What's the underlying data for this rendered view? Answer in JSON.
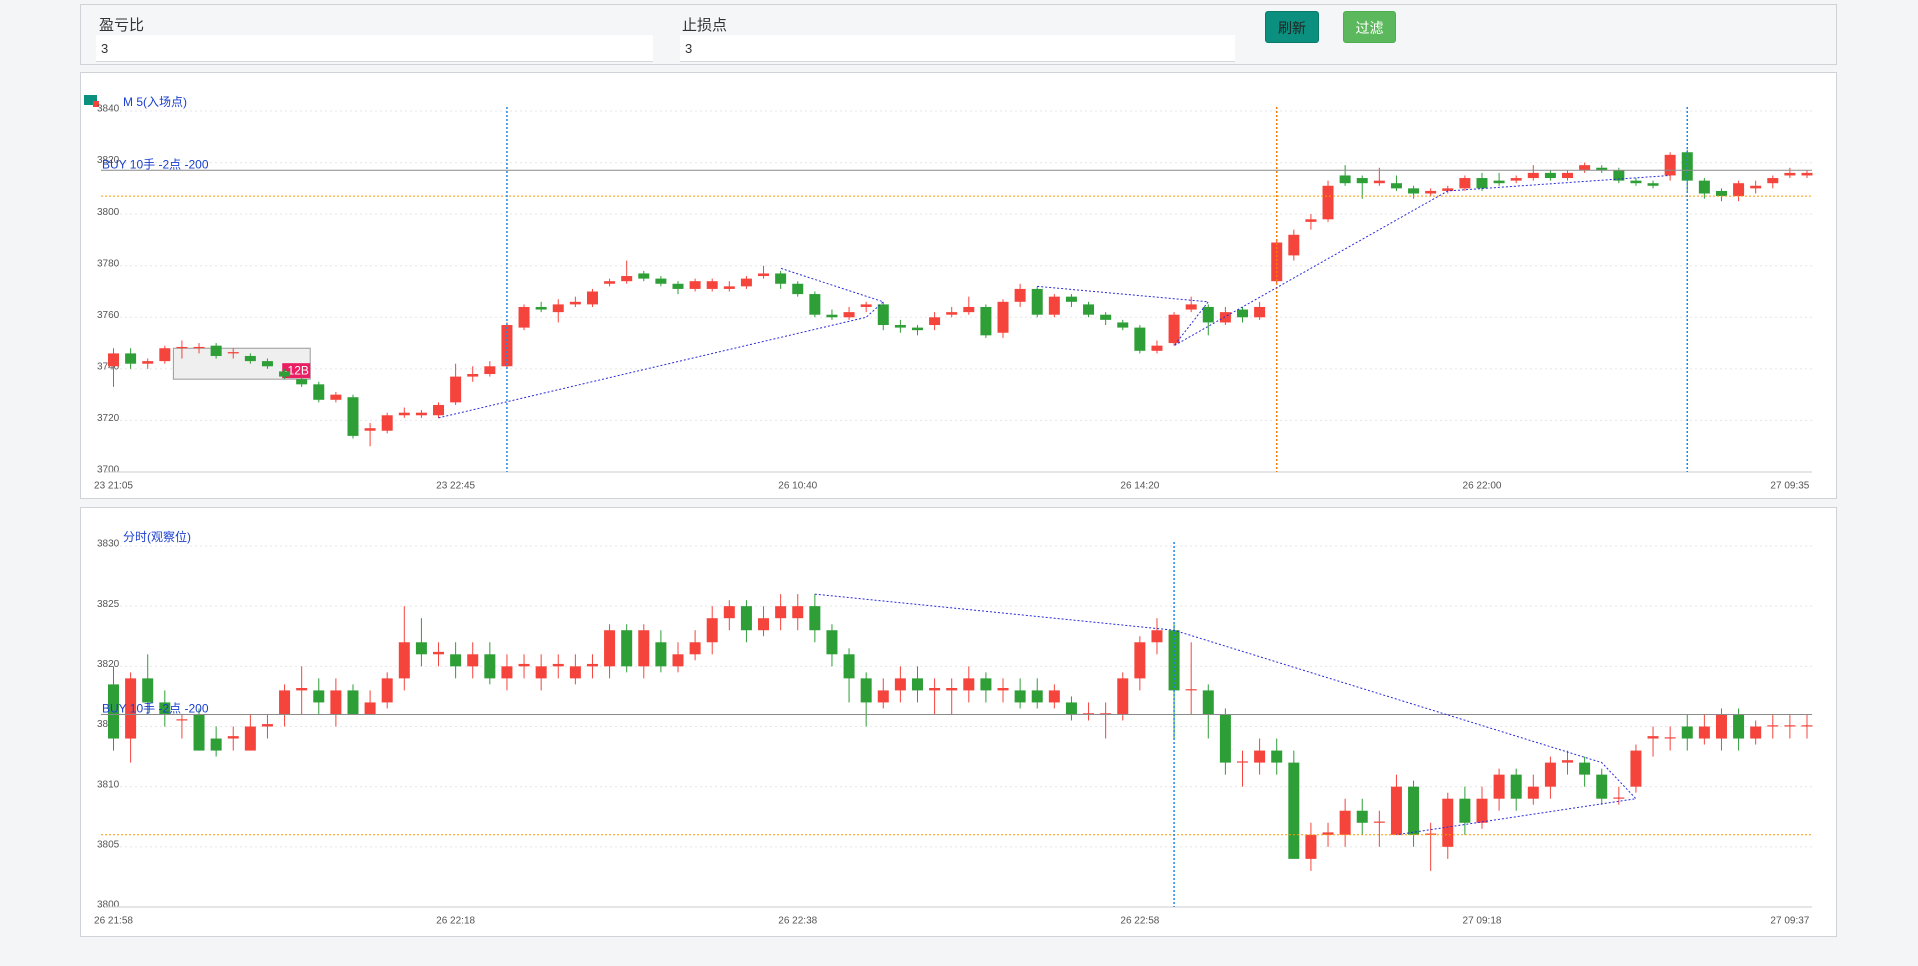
{
  "form": {
    "fields": [
      {
        "label": "盈亏比",
        "value": "3"
      },
      {
        "label": "止损点",
        "value": "3"
      }
    ],
    "buttons": [
      "刷新",
      "过滤"
    ]
  },
  "chart_data": [
    {
      "type": "candlestick",
      "title": "M 5(入场点)",
      "categories": [
        "23 21:05",
        null,
        null,
        null,
        null,
        null,
        null,
        null,
        null,
        null,
        null,
        null,
        null,
        null,
        null,
        null,
        null,
        null,
        null,
        null,
        "23 22:45",
        null,
        null,
        null,
        null,
        null,
        null,
        null,
        null,
        null,
        null,
        null,
        null,
        null,
        null,
        null,
        null,
        null,
        null,
        null,
        "26 10:40",
        null,
        null,
        null,
        null,
        null,
        null,
        null,
        null,
        null,
        null,
        null,
        null,
        null,
        null,
        null,
        null,
        null,
        null,
        null,
        "26 14:20",
        null,
        null,
        null,
        null,
        null,
        null,
        null,
        null,
        null,
        null,
        null,
        null,
        null,
        null,
        null,
        null,
        null,
        null,
        null,
        "26 22:00",
        null,
        null,
        null,
        null,
        null,
        null,
        null,
        null,
        null,
        null,
        null,
        null,
        null,
        null,
        null,
        null,
        null,
        "27 09:35",
        null
      ],
      "open": [
        3741,
        3746,
        3742,
        3743,
        3748,
        3748,
        3749,
        3746,
        3745,
        3743,
        3739,
        3736,
        3734,
        3728,
        3729,
        3716,
        3716,
        3722,
        3722,
        3722,
        3727,
        3737,
        3738,
        3741,
        3756,
        3764,
        3762,
        3765,
        3765,
        3773,
        3774,
        3777,
        3775,
        3773,
        3771,
        3771,
        3771,
        3772,
        3776,
        3777,
        3773,
        3769,
        3761,
        3760,
        3764,
        3765,
        3757,
        3756,
        3757,
        3761,
        3762,
        3764,
        3754,
        3766,
        3771,
        3761,
        3768,
        3765,
        3761,
        3758,
        3756,
        3747,
        3750,
        3763,
        3764,
        3758,
        3763,
        3760,
        3774,
        3784,
        3797,
        3798,
        3815,
        3814,
        3812,
        3812,
        3810,
        3808,
        3809,
        3810,
        3814,
        3813,
        3813,
        3814,
        3816,
        3814,
        3817,
        3818,
        3817,
        3813,
        3812,
        3815,
        3824,
        3813,
        3809,
        3807,
        3810,
        3812,
        3815,
        3815
      ],
      "high": [
        3748,
        3748,
        3744,
        3749,
        3751,
        3750,
        3750,
        3748,
        3746,
        3744,
        3740,
        3737,
        3735,
        3731,
        3730,
        3719,
        3723,
        3725,
        3724,
        3727,
        3742,
        3741,
        3743,
        3758,
        3765,
        3766,
        3767,
        3768,
        3771,
        3775,
        3782,
        3778,
        3776,
        3774,
        3775,
        3775,
        3774,
        3776,
        3780,
        3778,
        3774,
        3770,
        3763,
        3764,
        3766,
        3766,
        3759,
        3757,
        3762,
        3764,
        3768,
        3765,
        3767,
        3773,
        3772,
        3769,
        3769,
        3766,
        3762,
        3759,
        3757,
        3751,
        3762,
        3768,
        3765,
        3764,
        3764,
        3766,
        3790,
        3794,
        3800,
        3813,
        3819,
        3815,
        3818,
        3815,
        3811,
        3810,
        3811,
        3815,
        3816,
        3816,
        3815,
        3819,
        3817,
        3817,
        3820,
        3819,
        3818,
        3814,
        3813,
        3824,
        3825,
        3814,
        3810,
        3813,
        3813,
        3815,
        3818,
        3817
      ],
      "low": [
        3733,
        3740,
        3740,
        3742,
        3744,
        3746,
        3744,
        3744,
        3742,
        3740,
        3736,
        3733,
        3727,
        3727,
        3713,
        3710,
        3715,
        3721,
        3721,
        3721,
        3726,
        3735,
        3737,
        3740,
        3755,
        3762,
        3758,
        3764,
        3764,
        3772,
        3773,
        3774,
        3772,
        3769,
        3770,
        3770,
        3770,
        3771,
        3775,
        3771,
        3768,
        3760,
        3759,
        3759,
        3762,
        3755,
        3754,
        3753,
        3755,
        3760,
        3761,
        3752,
        3752,
        3764,
        3760,
        3760,
        3764,
        3760,
        3757,
        3755,
        3746,
        3746,
        3749,
        3762,
        3753,
        3757,
        3758,
        3759,
        3773,
        3782,
        3794,
        3797,
        3811,
        3806,
        3811,
        3809,
        3806,
        3807,
        3808,
        3809,
        3809,
        3811,
        3812,
        3813,
        3813,
        3813,
        3816,
        3816,
        3812,
        3811,
        3810,
        3813,
        3809,
        3806,
        3805,
        3805,
        3808,
        3810,
        3814,
        3814
      ],
      "close": [
        3746,
        3742,
        3743,
        3748,
        3748.5,
        3748.5,
        3745,
        3746.5,
        3743,
        3741,
        3737,
        3734,
        3728,
        3730,
        3714,
        3717,
        3722,
        3723,
        3723,
        3726,
        3737,
        3738,
        3741,
        3757,
        3764,
        3763,
        3765,
        3766,
        3770,
        3774,
        3776,
        3775,
        3773,
        3771,
        3774,
        3774,
        3772,
        3775,
        3777,
        3773,
        3769,
        3761,
        3760,
        3762,
        3765,
        3757,
        3756,
        3755,
        3760,
        3762,
        3764,
        3753,
        3766,
        3771,
        3761,
        3768,
        3766,
        3761,
        3759,
        3756,
        3747,
        3749,
        3761,
        3765,
        3758,
        3762,
        3760,
        3764,
        3789,
        3792,
        3798,
        3811,
        3812,
        3812,
        3813,
        3810,
        3808,
        3809,
        3810,
        3814,
        3810,
        3812,
        3814,
        3816,
        3814,
        3816,
        3819,
        3817,
        3813,
        3812,
        3811,
        3823,
        3813,
        3808,
        3807,
        3812,
        3811,
        3814,
        3816,
        3816
      ],
      "up_color": "#f5443c",
      "down_color": "#2e9e37",
      "ylim": [
        3700,
        3840
      ],
      "yticks": [
        3700,
        3720,
        3740,
        3760,
        3780,
        3800,
        3820,
        3840
      ],
      "grid": true,
      "hlines": [
        {
          "value": 3817,
          "label": "BUY 10手 -2点 -200",
          "color": "#8a8a8a",
          "style": "solid"
        },
        {
          "value": 3807,
          "color": "#ff9800",
          "style": "dotted"
        }
      ],
      "vlines": [
        {
          "index": 23,
          "color": "#1e88e5"
        },
        {
          "index": 68,
          "color": "#f57c00"
        },
        {
          "index": 92,
          "color": "#1e88e5"
        }
      ],
      "zigzag": [
        {
          "color": "#2b2bd9",
          "points": [
            [
              19,
              3721
            ],
            [
              44,
              3760
            ],
            [
              45,
              3766
            ],
            [
              39,
              3779
            ]
          ]
        },
        {
          "color": "#2b2bd9",
          "points": [
            [
              54,
              3772
            ],
            [
              64,
              3766
            ],
            [
              62,
              3749
            ],
            [
              78,
              3809
            ],
            [
              91,
              3815
            ]
          ]
        }
      ],
      "box": {
        "start": 4,
        "end": 11,
        "top": 3748,
        "bottom": 3736,
        "label": "-12B"
      }
    },
    {
      "type": "candlestick",
      "title": "分时(观察位)",
      "categories": [
        "26 21:58",
        null,
        null,
        null,
        null,
        null,
        null,
        null,
        null,
        null,
        null,
        null,
        null,
        null,
        null,
        null,
        null,
        null,
        null,
        null,
        "26 22:18",
        null,
        null,
        null,
        null,
        null,
        null,
        null,
        null,
        null,
        null,
        null,
        null,
        null,
        null,
        null,
        null,
        null,
        null,
        null,
        "26 22:38",
        null,
        null,
        null,
        null,
        null,
        null,
        null,
        null,
        null,
        null,
        null,
        null,
        null,
        null,
        null,
        null,
        null,
        null,
        null,
        "26 22:58",
        null,
        null,
        null,
        null,
        null,
        null,
        null,
        null,
        null,
        null,
        null,
        null,
        null,
        null,
        null,
        null,
        null,
        null,
        null,
        "27 09:18",
        null,
        null,
        null,
        null,
        null,
        null,
        null,
        null,
        null,
        null,
        null,
        null,
        null,
        null,
        null,
        null,
        null,
        "27 09:37",
        null
      ],
      "open": [
        3818.5,
        3814,
        3819,
        3817,
        3815.5,
        3816,
        3814,
        3814,
        3813,
        3815,
        3816,
        3818,
        3818,
        3816,
        3818,
        3816,
        3817,
        3819,
        3822,
        3821,
        3821,
        3820,
        3821,
        3819,
        3820,
        3819,
        3820,
        3819,
        3820,
        3820,
        3823,
        3820,
        3822,
        3820,
        3821,
        3822,
        3824,
        3825,
        3823,
        3824,
        3824,
        3825,
        3823,
        3821,
        3819,
        3817,
        3818,
        3819,
        3818,
        3818,
        3818,
        3819,
        3818,
        3818,
        3818,
        3817,
        3817,
        3816,
        3816,
        3816,
        3819,
        3822,
        3823,
        3818,
        3818,
        3816,
        3812,
        3812,
        3813,
        3812,
        3804,
        3806,
        3806,
        3808,
        3807,
        3806,
        3810,
        3806,
        3805,
        3809,
        3807,
        3809,
        3811,
        3809,
        3810,
        3812,
        3812,
        3811,
        3809,
        3810,
        3814,
        3814,
        3815,
        3814,
        3814,
        3816,
        3814,
        3815,
        3815,
        3815
      ],
      "high": [
        3820,
        3819.5,
        3821,
        3818,
        3816,
        3816.5,
        3815,
        3815,
        3816,
        3816,
        3818.5,
        3820,
        3819,
        3819,
        3818.5,
        3818,
        3819.5,
        3825,
        3824,
        3822,
        3822,
        3822,
        3822,
        3821,
        3821,
        3821,
        3821,
        3821,
        3821,
        3823.5,
        3823.5,
        3823.5,
        3823,
        3822,
        3823,
        3825,
        3825.5,
        3825.5,
        3825,
        3826,
        3826,
        3826,
        3823.5,
        3821.5,
        3819.5,
        3819,
        3820,
        3820,
        3819,
        3819,
        3820,
        3819.5,
        3819,
        3819,
        3819,
        3818.5,
        3817.5,
        3817,
        3817,
        3819.5,
        3822.5,
        3824,
        3823.5,
        3822,
        3818.5,
        3816.5,
        3813,
        3814,
        3814,
        3813,
        3807,
        3807,
        3809,
        3809,
        3808,
        3811,
        3810.5,
        3807,
        3809.5,
        3810,
        3810,
        3811.5,
        3811.5,
        3811,
        3812.5,
        3813,
        3812.5,
        3811.5,
        3810,
        3813.5,
        3815,
        3815,
        3816,
        3816,
        3816.5,
        3816.5,
        3815.5,
        3816,
        3816,
        3816
      ],
      "low": [
        3813,
        3812,
        3816,
        3815,
        3814,
        3813,
        3812.5,
        3813,
        3813,
        3814,
        3815,
        3816,
        3816,
        3815,
        3816,
        3816,
        3816.5,
        3818,
        3820,
        3820,
        3819,
        3819,
        3818.5,
        3818,
        3819,
        3818,
        3819,
        3818.5,
        3819,
        3819,
        3819.5,
        3819,
        3819.5,
        3819.5,
        3820.5,
        3821,
        3823,
        3822,
        3822.5,
        3823,
        3823,
        3822,
        3820,
        3817,
        3815,
        3816.5,
        3817,
        3817,
        3816,
        3816,
        3817,
        3817,
        3817,
        3816.5,
        3816.5,
        3816.5,
        3815.5,
        3815.5,
        3814,
        3815.5,
        3818,
        3821,
        3814,
        3816,
        3814,
        3811,
        3810,
        3811,
        3811,
        3804,
        3803,
        3805,
        3805,
        3806,
        3805,
        3806,
        3805,
        3803,
        3804,
        3806,
        3806.5,
        3808,
        3808,
        3808.5,
        3809,
        3811,
        3810,
        3808.5,
        3808.5,
        3809.5,
        3812.5,
        3813,
        3813,
        3813.5,
        3813,
        3813,
        3813.5,
        3814,
        3814,
        3814
      ],
      "close": [
        3814,
        3819,
        3817,
        3816,
        3815.6,
        3813,
        3813,
        3814.2,
        3815,
        3815.2,
        3818,
        3818.2,
        3817,
        3818,
        3816,
        3817,
        3819,
        3822,
        3821,
        3821.2,
        3820,
        3821,
        3819,
        3820,
        3820.2,
        3820,
        3820.2,
        3820,
        3820.2,
        3823,
        3820,
        3823,
        3820,
        3821,
        3822,
        3824,
        3825,
        3823,
        3824,
        3825,
        3825,
        3823,
        3821,
        3819,
        3817,
        3818,
        3819,
        3818,
        3818.2,
        3818.2,
        3819,
        3818,
        3818.2,
        3817,
        3817,
        3818,
        3816,
        3816.1,
        3816.1,
        3819,
        3822,
        3823,
        3818,
        3818.1,
        3816,
        3812,
        3812.1,
        3813,
        3812,
        3804,
        3806,
        3806.2,
        3808,
        3807,
        3807.1,
        3810,
        3806,
        3806.1,
        3809,
        3807,
        3809,
        3811,
        3809,
        3810,
        3812,
        3812.2,
        3811,
        3809,
        3809.1,
        3813,
        3814.2,
        3814.1,
        3814,
        3815,
        3816,
        3814,
        3815,
        3815.1,
        3815.1,
        3815.1
      ],
      "up_color": "#f5443c",
      "down_color": "#2e9e37",
      "ylim": [
        3800,
        3830
      ],
      "yticks": [
        3800,
        3805,
        3810,
        3815,
        3820,
        3825,
        3830
      ],
      "grid": true,
      "hlines": [
        {
          "value": 3816,
          "label": "BUY 10手 -2点 -200",
          "color": "#8a8a8a",
          "style": "solid"
        },
        {
          "value": 3806,
          "color": "#ff9800",
          "style": "dotted"
        }
      ],
      "vlines": [
        {
          "index": 62,
          "color": "#1e88e5"
        }
      ],
      "zigzag": [
        {
          "color": "#2b2bd9",
          "points": [
            [
              41,
              3826
            ],
            [
              62,
              3823
            ],
            [
              87,
              3812
            ],
            [
              89,
              3809
            ],
            [
              75,
              3806
            ]
          ]
        }
      ]
    }
  ]
}
